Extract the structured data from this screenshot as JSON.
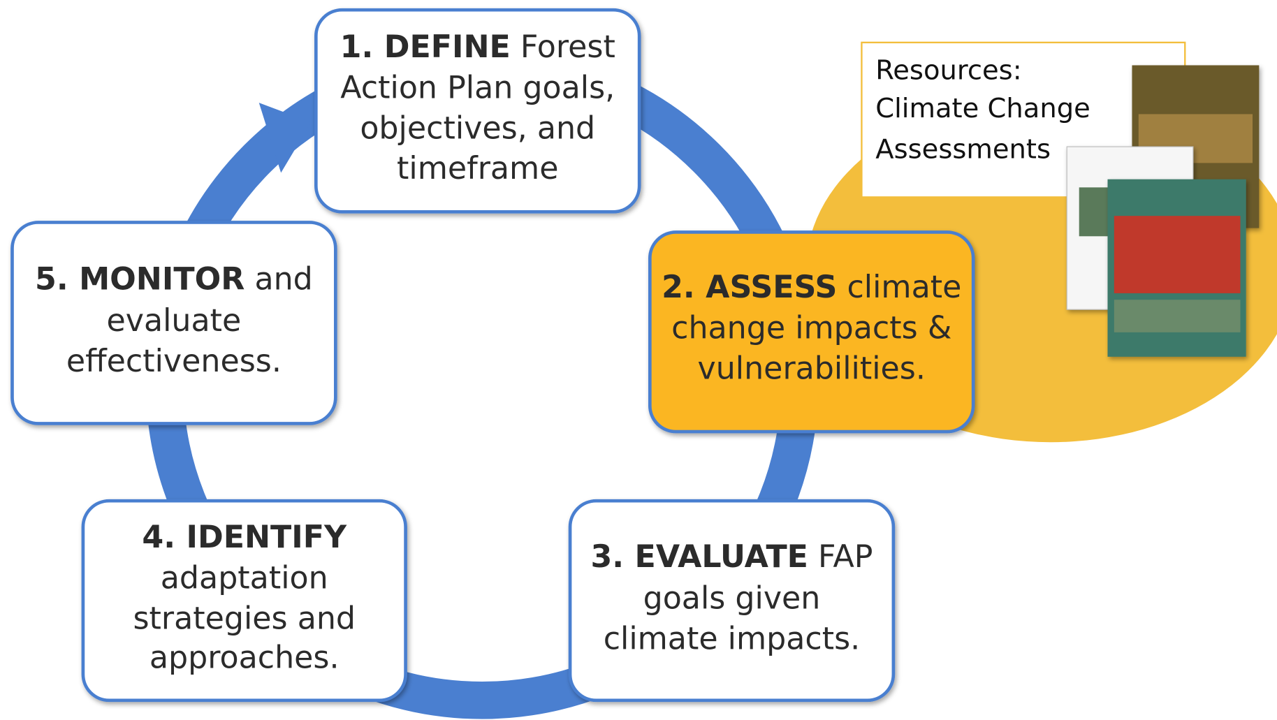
{
  "nodes": [
    {
      "bold": "1. DEFINE",
      "lines": [
        "Forest",
        "Action Plan goals,",
        "objectives, and",
        "timeframe"
      ]
    },
    {
      "bold": "2. ASSESS",
      "lines": [
        "climate",
        "change impacts &",
        "vulnerabilities."
      ]
    },
    {
      "bold": "3. EVALUATE",
      "lines": [
        "FAP",
        "goals given",
        "climate impacts."
      ]
    },
    {
      "bold": "4. IDENTIFY",
      "lines": [
        "",
        "adaptation",
        "strategies and",
        "approaches."
      ]
    },
    {
      "bold": "5. MONITOR",
      "lines": [
        "and",
        "evaluate",
        "effectiveness."
      ]
    }
  ],
  "resources": {
    "title": "Resources:",
    "lines": [
      "Climate Change",
      "Assessments"
    ]
  }
}
